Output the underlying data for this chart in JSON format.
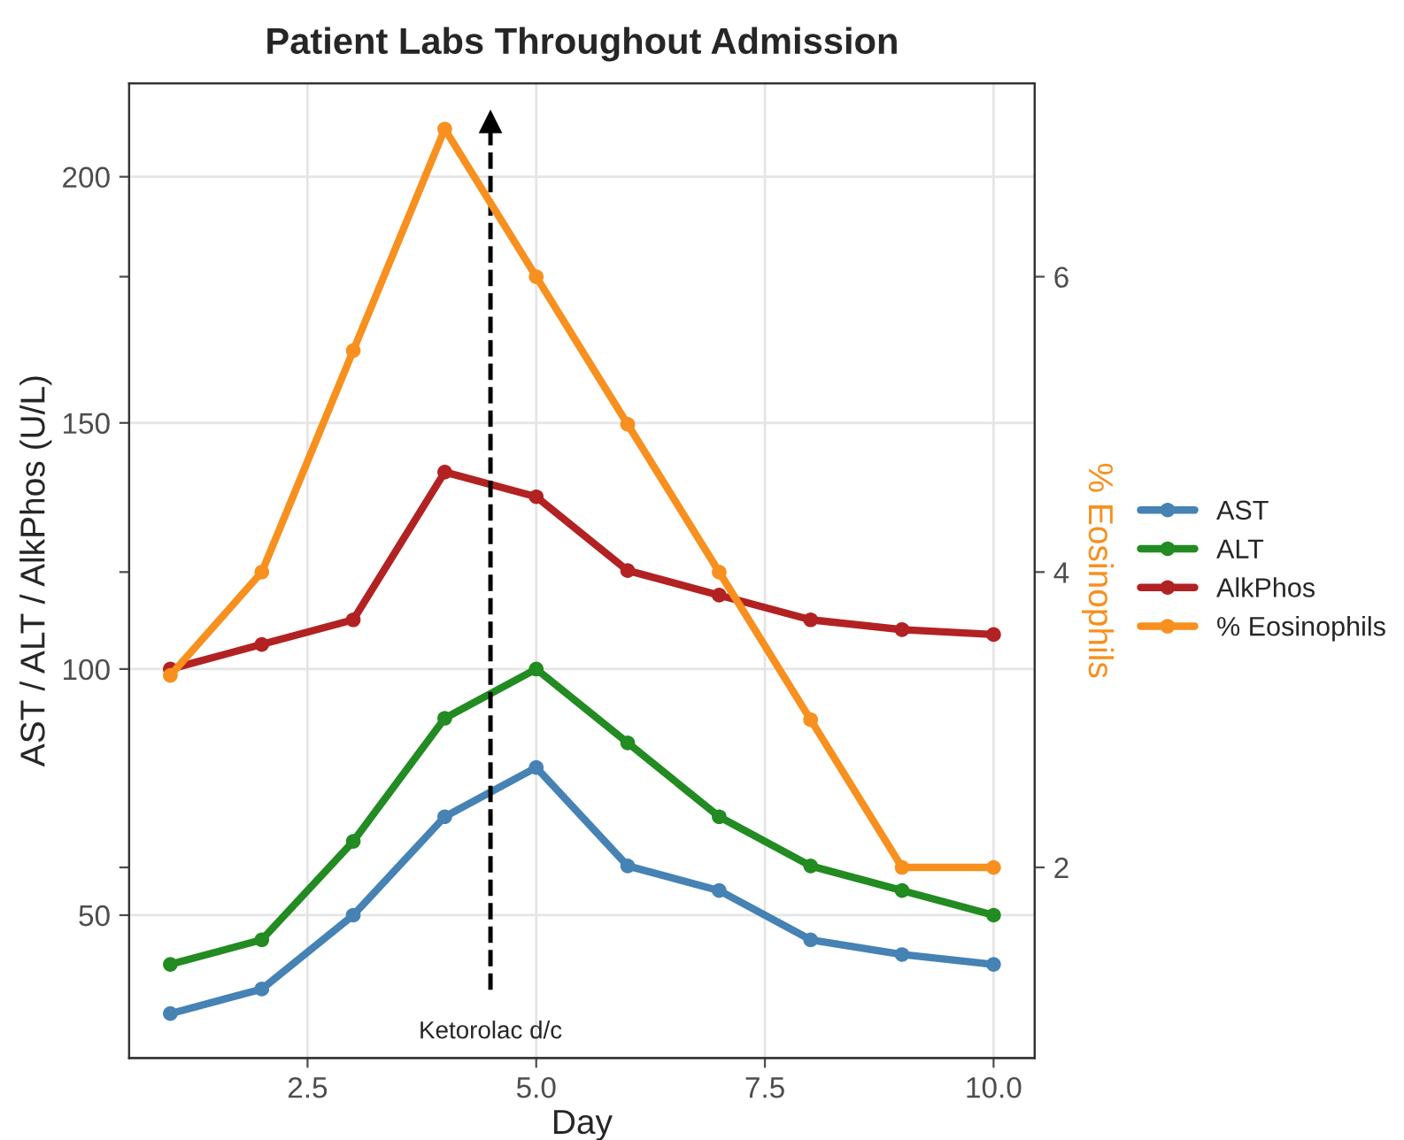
{
  "chart_data": {
    "type": "line",
    "title": "Patient Labs Throughout Admission",
    "xlabel": "Day",
    "ylabel": "AST / ALT / AlkPhos (U/L)",
    "y2label": "% Eosinophils",
    "x": [
      1,
      2,
      3,
      4,
      5,
      6,
      7,
      8,
      9,
      10
    ],
    "series": [
      {
        "name": "AST",
        "color": "#4682b4",
        "values": [
          30,
          35,
          50,
          70,
          80,
          60,
          55,
          45,
          42,
          40
        ]
      },
      {
        "name": "ALT",
        "color": "#228b22",
        "values": [
          40,
          45,
          65,
          90,
          100,
          85,
          70,
          60,
          55,
          50
        ]
      },
      {
        "name": "AlkPhos",
        "color": "#b22222",
        "values": [
          100,
          105,
          110,
          140,
          135,
          120,
          115,
          110,
          108,
          107
        ]
      },
      {
        "name": "% Eosinophils",
        "color": "#f7901e",
        "axis": "y2",
        "values": [
          3.3,
          4,
          5.5,
          7,
          6,
          5,
          4,
          3,
          2,
          2
        ]
      }
    ],
    "xlim": [
      0.55,
      10.45
    ],
    "xticks": [
      2.5,
      {
        "value": 5,
        "label": "5.0"
      },
      7.5,
      {
        "value": 10,
        "label": "10.0"
      }
    ],
    "ylim": [
      21,
      219
    ],
    "yticks": [
      50,
      100,
      150,
      200
    ],
    "y2lim": [
      0.71,
      7.31
    ],
    "y2ticks": [
      2,
      4,
      6
    ],
    "ref_lines": [
      {
        "axis": "x",
        "value": 4.5,
        "label": "Ketorolac d/c",
        "color": "#000000",
        "line_style": "dashed"
      }
    ],
    "grid": true,
    "legend": "right",
    "marker": "circle",
    "line_style": "solid"
  }
}
